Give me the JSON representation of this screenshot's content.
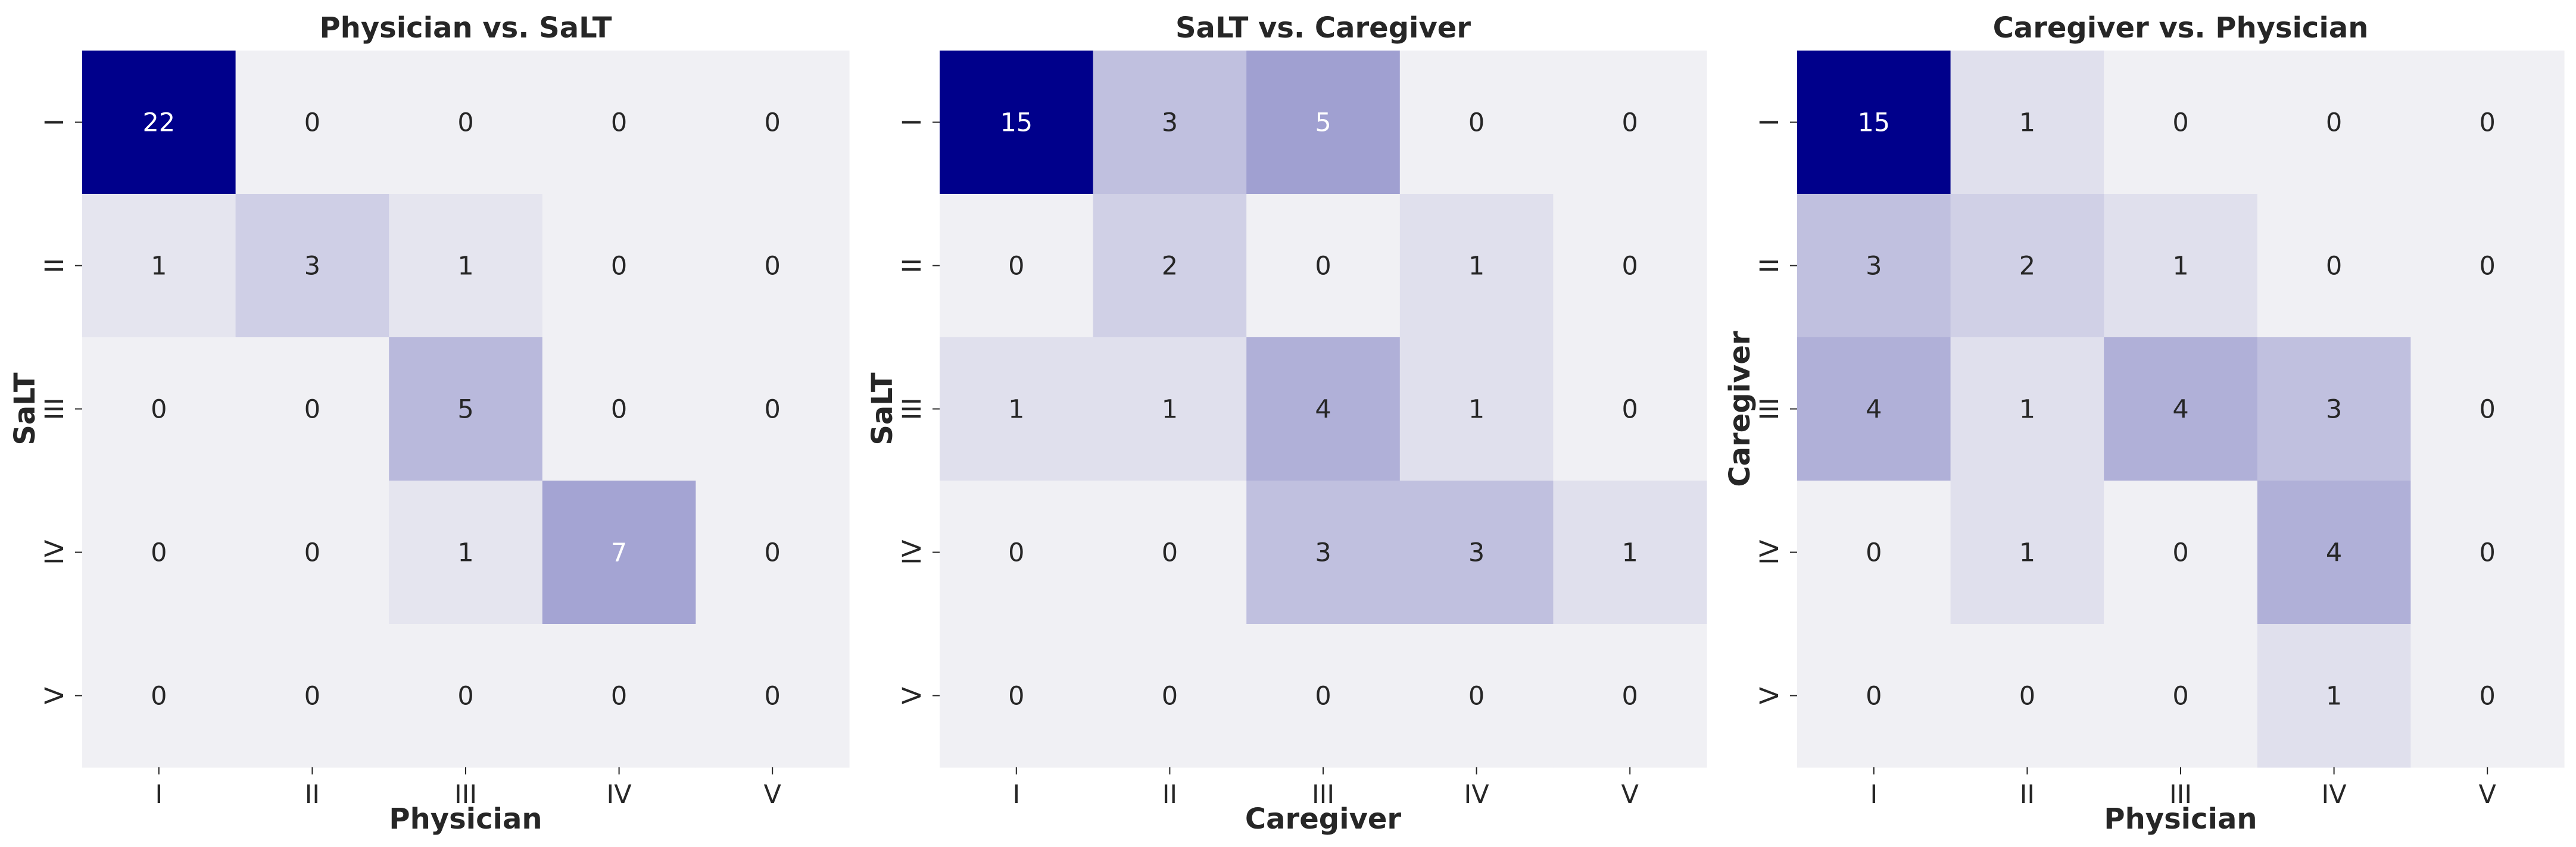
{
  "chart_data": [
    {
      "type": "heatmap",
      "title": "Physician vs. SaLT",
      "xlabel": "Physician",
      "ylabel": "SaLT",
      "x_categories": [
        "I",
        "II",
        "III",
        "IV",
        "V"
      ],
      "y_categories": [
        "I",
        "II",
        "III",
        "IV",
        "V"
      ],
      "values": [
        [
          22,
          0,
          0,
          0,
          0
        ],
        [
          1,
          3,
          1,
          0,
          0
        ],
        [
          0,
          0,
          5,
          0,
          0
        ],
        [
          0,
          0,
          1,
          7,
          0
        ],
        [
          0,
          0,
          0,
          0,
          0
        ]
      ],
      "vmax": 22
    },
    {
      "type": "heatmap",
      "title": "SaLT vs. Caregiver",
      "xlabel": "Caregiver",
      "ylabel": "SaLT",
      "x_categories": [
        "I",
        "II",
        "III",
        "IV",
        "V"
      ],
      "y_categories": [
        "I",
        "II",
        "III",
        "IV",
        "V"
      ],
      "values": [
        [
          15,
          3,
          5,
          0,
          0
        ],
        [
          0,
          2,
          0,
          1,
          0
        ],
        [
          1,
          1,
          4,
          1,
          0
        ],
        [
          0,
          0,
          3,
          3,
          1
        ],
        [
          0,
          0,
          0,
          0,
          0
        ]
      ],
      "vmax": 15
    },
    {
      "type": "heatmap",
      "title": "Caregiver vs. Physician",
      "xlabel": "Physician",
      "ylabel": "Caregiver",
      "x_categories": [
        "I",
        "II",
        "III",
        "IV",
        "V"
      ],
      "y_categories": [
        "I",
        "II",
        "III",
        "IV",
        "V"
      ],
      "values": [
        [
          15,
          1,
          0,
          0,
          0
        ],
        [
          3,
          2,
          1,
          0,
          0
        ],
        [
          4,
          1,
          4,
          3,
          0
        ],
        [
          0,
          1,
          0,
          4,
          0
        ],
        [
          0,
          0,
          0,
          1,
          0
        ]
      ],
      "vmax": 15
    }
  ],
  "colors": {
    "low": "#f0f0f4",
    "high": "#00008b",
    "text_dark": "#262626",
    "text_light": "#ffffff"
  }
}
